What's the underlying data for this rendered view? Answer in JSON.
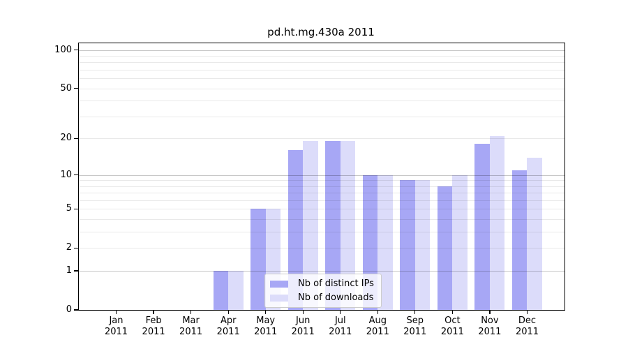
{
  "chart_data": {
    "type": "bar",
    "title": "pd.ht.mg.430a 2011",
    "scale": "log10(1+x)",
    "grid": true,
    "x_axis": {
      "months": [
        "Jan",
        "Feb",
        "Mar",
        "Apr",
        "May",
        "Jun",
        "Jul",
        "Aug",
        "Sep",
        "Oct",
        "Nov",
        "Dec"
      ],
      "year": "2011"
    },
    "y_axis": {
      "ticks": [
        100,
        50,
        20,
        10,
        5,
        2,
        1,
        0
      ],
      "range": [
        0,
        114
      ]
    },
    "gridlines": {
      "major_values": [
        1,
        10,
        100
      ],
      "minor_values": [
        2,
        3,
        4,
        5,
        6,
        7,
        8,
        9,
        20,
        30,
        40,
        50,
        60,
        70,
        80,
        90
      ]
    },
    "legend": {
      "position": "lower center"
    },
    "series": [
      {
        "name": "Nb of distinct IPs",
        "color": "#a7a7f5",
        "values": [
          0,
          0,
          0,
          1,
          5,
          16,
          19,
          10,
          9,
          8,
          18,
          11
        ]
      },
      {
        "name": "Nb of downloads",
        "color": "#dcdcfa",
        "values": [
          0,
          0,
          0,
          1,
          5,
          19,
          19,
          10,
          9,
          10,
          21,
          14
        ]
      }
    ]
  }
}
